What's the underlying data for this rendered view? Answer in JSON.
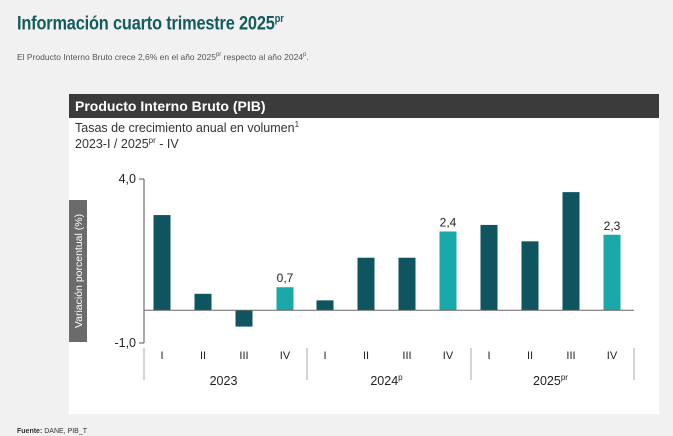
{
  "page": {
    "title": "Información cuarto trimestre 2025",
    "title_sup": "pr",
    "subtitle_pre": "El Producto Interno Bruto crece 2,6% en el año 2025",
    "subtitle_sup1": "pr",
    "subtitle_mid": " respecto al año 2024",
    "subtitle_sup2": "p",
    "subtitle_end": ".",
    "source_label": "Fuente:",
    "source_text": "DANE, PIB_T"
  },
  "colors": {
    "title": "#145c5c",
    "bar_dark": "#0f5560",
    "bar_highlight": "#1aa8a8",
    "header_bg": "#3b3b3b"
  },
  "chart_data": {
    "type": "bar",
    "title": "Producto Interno Bruto (PIB)",
    "subtitle_line1": "Tasas de crecimiento anual en volumen",
    "subtitle_line1_sup": "1",
    "subtitle_line2_pre": "2023-I / 2025",
    "subtitle_line2_sup": "pr",
    "subtitle_line2_post": " - IV",
    "ylabel": "Variación porcentual (%)",
    "ylim": [
      -1.0,
      4.0
    ],
    "yticks": [
      "4,0",
      "-1,0"
    ],
    "groups": [
      {
        "label": "2023",
        "label_sup": ""
      },
      {
        "label": "2024",
        "label_sup": "p"
      },
      {
        "label": "2025",
        "label_sup": "pr"
      }
    ],
    "categories": [
      "I",
      "II",
      "III",
      "IV",
      "I",
      "II",
      "III",
      "IV",
      "I",
      "II",
      "III",
      "IV"
    ],
    "values": [
      2.9,
      0.5,
      -0.5,
      0.7,
      0.3,
      1.6,
      1.6,
      2.4,
      2.6,
      2.1,
      3.6,
      2.3
    ],
    "highlight": [
      false,
      false,
      false,
      true,
      false,
      false,
      false,
      true,
      false,
      false,
      false,
      true
    ],
    "data_labels": [
      "",
      "",
      "",
      "0,7",
      "",
      "",
      "",
      "2,4",
      "",
      "",
      "",
      "2,3"
    ]
  }
}
